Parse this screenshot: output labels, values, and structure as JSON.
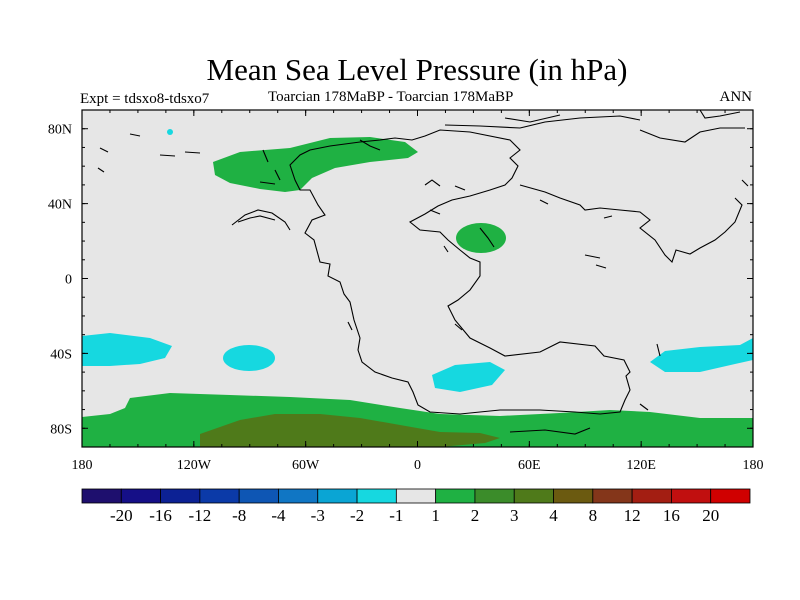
{
  "title": "Mean Sea Level Pressure (in hPa)",
  "subtitle_left": "Expt = tdsxo8-tdsxo7",
  "subtitle_center": "Toarcian 178MaBP - Toarcian 178MaBP",
  "subtitle_right": "ANN",
  "axes": {
    "x_ticks": [
      "180",
      "120W",
      "60W",
      "0",
      "60E",
      "120E",
      "180"
    ],
    "y_ticks": [
      "80N",
      "40N",
      "0",
      "40S",
      "80S"
    ]
  },
  "colorbar": {
    "labels": [
      "-20",
      "-16",
      "-12",
      "-8",
      "-4",
      "-3",
      "-2",
      "-1",
      "1",
      "2",
      "3",
      "4",
      "8",
      "12",
      "16",
      "20"
    ],
    "colors": [
      "#1e0f6e",
      "#150f87",
      "#0c2194",
      "#0b3aa8",
      "#0e56b4",
      "#1076c4",
      "#0aa5d4",
      "#16d8e0",
      "#e6e6e6",
      "#1fb143",
      "#3b8c2a",
      "#4f7a1a",
      "#6b5a10",
      "#84361a",
      "#a31e12",
      "#c10f0f",
      "#d00000"
    ]
  },
  "colors": {
    "land_background": "#e6e6e6",
    "positive_1_2": "#1fb143",
    "positive_2_3": "#3b8c2a",
    "positive_3_4": "#4f7a1a",
    "negative_2_1": "#16d8e0"
  }
}
